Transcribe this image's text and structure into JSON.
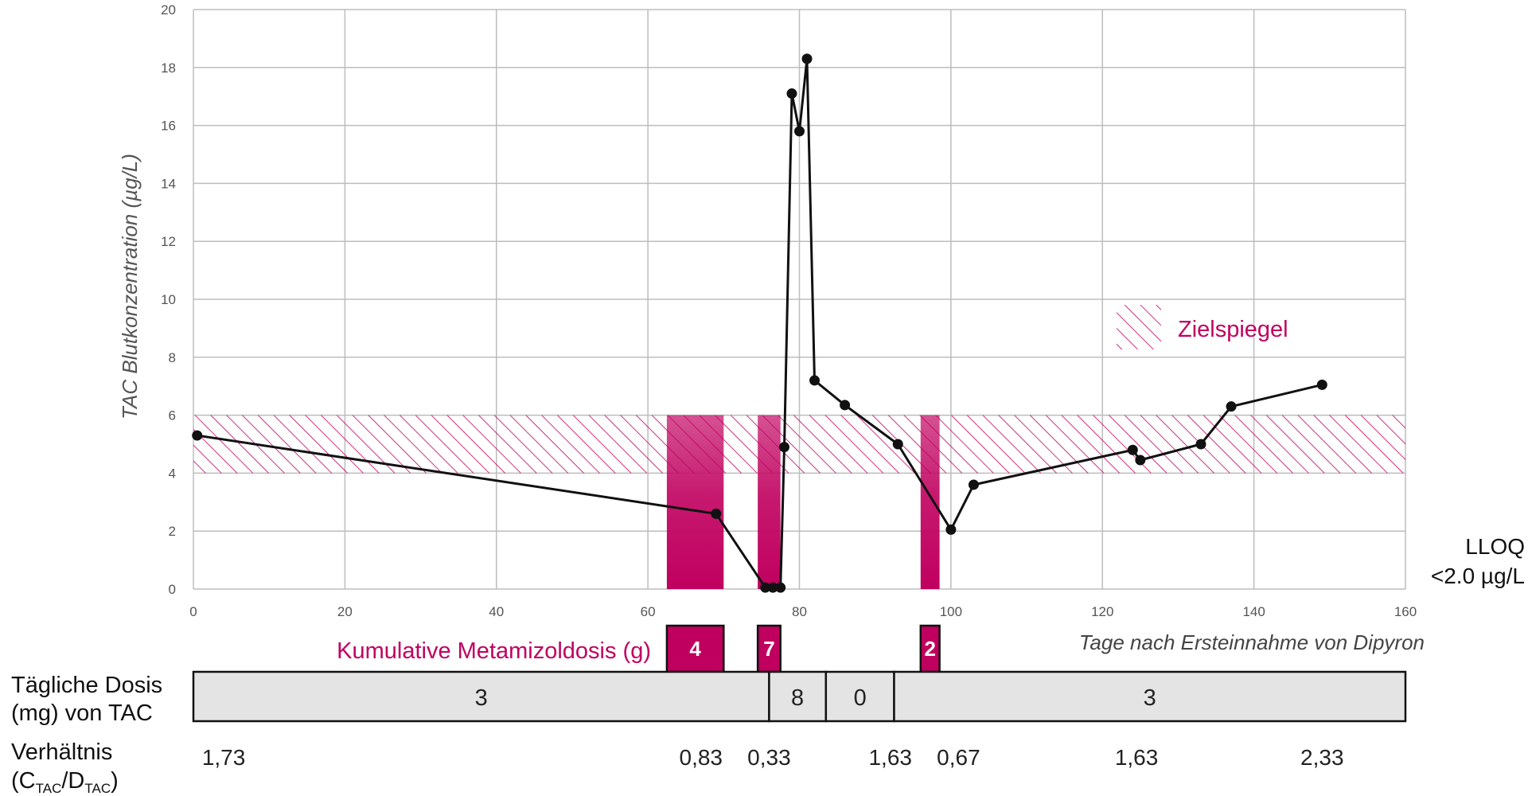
{
  "chart_data": {
    "type": "line",
    "ylabel": "TAC Blutkonzentration (µg/L)",
    "xlabel": "Tage nach Ersteinnahme von Dipyron",
    "xlim": [
      0,
      160
    ],
    "ylim": [
      0,
      20
    ],
    "xticks": [
      0,
      20,
      40,
      60,
      80,
      100,
      120,
      140,
      160
    ],
    "yticks": [
      0,
      2,
      4,
      6,
      8,
      10,
      12,
      14,
      16,
      18,
      20
    ],
    "grid": true,
    "lloq": {
      "line1": "LLOQ",
      "line2": "<2.0 µg/L"
    },
    "target_range": {
      "y_min": 4,
      "y_max": 6,
      "label": "Zielspiegel",
      "legend_position": "right"
    },
    "series": [
      {
        "points": [
          [
            0.5,
            5.3
          ],
          [
            69,
            2.6
          ],
          [
            75.5,
            0.05
          ],
          [
            76.5,
            0.05
          ],
          [
            77.5,
            0.05
          ],
          [
            78,
            4.9
          ],
          [
            79,
            17.1
          ],
          [
            80,
            15.8
          ],
          [
            81,
            18.3
          ],
          [
            82,
            7.2
          ],
          [
            86,
            6.35
          ],
          [
            93,
            5.0
          ],
          [
            100,
            2.05
          ],
          [
            103,
            3.6
          ],
          [
            124,
            4.8
          ],
          [
            125,
            4.45
          ],
          [
            133,
            5.0
          ],
          [
            137,
            6.3
          ],
          [
            149,
            7.05
          ]
        ]
      }
    ],
    "metamizol": {
      "label": "Kumulative Metamizoldosis (g)",
      "periods": [
        {
          "x_start": 62.5,
          "x_end": 70,
          "dose": "4"
        },
        {
          "x_start": 74.5,
          "x_end": 77.5,
          "dose": "7"
        },
        {
          "x_start": 96,
          "x_end": 98.5,
          "dose": "2"
        }
      ]
    },
    "daily_dose": {
      "header_line1": "Tägliche Dosis",
      "header_line2": "(mg) von TAC",
      "segments": [
        {
          "x_start": 0,
          "x_end": 76,
          "value": "3"
        },
        {
          "x_start": 76,
          "x_end": 83.5,
          "value": "8"
        },
        {
          "x_start": 83.5,
          "x_end": 92.5,
          "value": "0"
        },
        {
          "x_start": 92.5,
          "x_end": 160,
          "value": "3"
        }
      ]
    },
    "ratio": {
      "header_line1": "Verhältnis",
      "header_prefix": "(C",
      "header_sub1": "TAC",
      "header_mid": "/D",
      "header_sub2": "TAC",
      "header_suffix": ")",
      "values": [
        {
          "x": 4,
          "value": "1,73"
        },
        {
          "x": 67,
          "value": "0,83"
        },
        {
          "x": 76,
          "value": "0,33"
        },
        {
          "x": 92,
          "value": "1,63"
        },
        {
          "x": 101,
          "value": "0,67"
        },
        {
          "x": 124.5,
          "value": "1,63"
        },
        {
          "x": 149,
          "value": "2,33"
        }
      ]
    },
    "colors": {
      "magenta": "#c0005f",
      "line": "#111111",
      "grid": "#bdbdbd",
      "dose_fill": "#e4e4e4"
    }
  }
}
